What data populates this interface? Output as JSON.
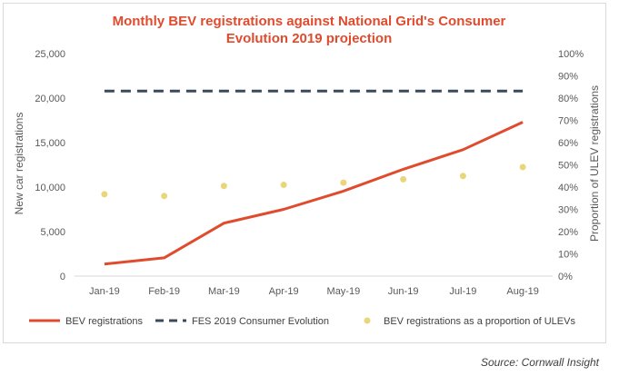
{
  "chart_data": {
    "type": "line",
    "title_lines": [
      "Monthly BEV registrations against National Grid's Consumer",
      "Evolution 2019 projection"
    ],
    "title_color": "#e04b2e",
    "categories": [
      "Jan-19",
      "Feb-19",
      "Mar-19",
      "Apr-19",
      "May-19",
      "Jun-19",
      "Jul-19",
      "Aug-19"
    ],
    "ylabel_left": "New car registrations",
    "ylabel_right": "Proportion of ULEV registrations",
    "ylim_left": [
      0,
      25000
    ],
    "ylim_right": [
      0,
      1
    ],
    "yticks_left": [
      "0",
      "5,000",
      "10,000",
      "15,000",
      "20,000",
      "25,000"
    ],
    "yticks_right": [
      "0%",
      "10%",
      "20%",
      "30%",
      "40%",
      "50%",
      "60%",
      "70%",
      "80%",
      "90%",
      "100%"
    ],
    "series": [
      {
        "name": "BEV registrations",
        "axis": "left",
        "style": "line",
        "color": "#e04b2e",
        "values": [
          1350,
          2050,
          5950,
          7500,
          9550,
          12000,
          14200,
          17300
        ]
      },
      {
        "name": "FES 2019 Consumer Evolution",
        "axis": "left",
        "style": "dashed",
        "color": "#3a4a5a",
        "values": [
          20800,
          20800,
          20800,
          20800,
          20800,
          20800,
          20800,
          20800
        ]
      },
      {
        "name": "BEV registrations as a proportion of ULEVs",
        "axis": "right",
        "style": "points",
        "color": "#ead67a",
        "values": [
          0.368,
          0.36,
          0.405,
          0.41,
          0.42,
          0.435,
          0.45,
          0.49
        ]
      }
    ],
    "grid": false,
    "legend": "bottom"
  },
  "source": "Source: Cornwall Insight"
}
